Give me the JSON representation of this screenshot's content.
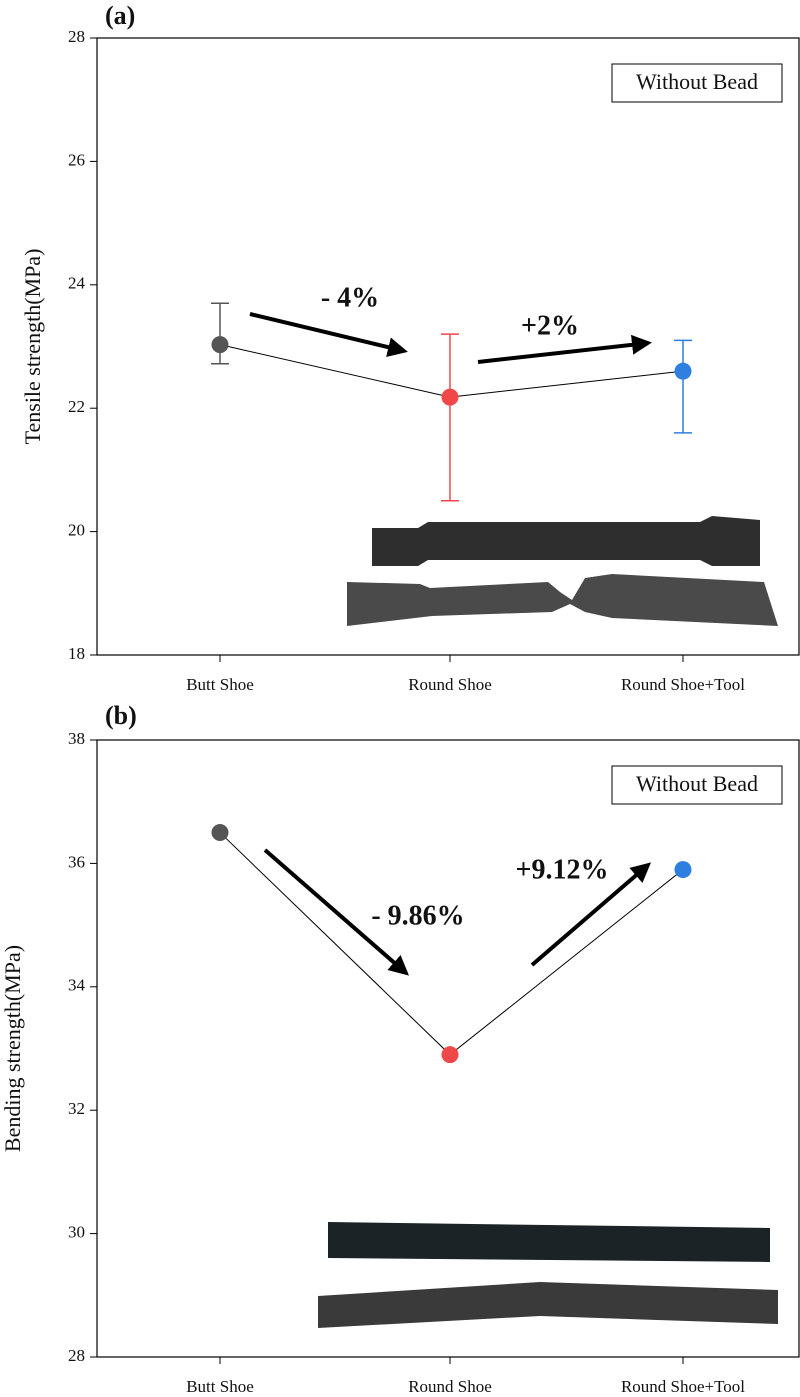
{
  "chart_data": [
    {
      "type": "line",
      "panel_label": "(a)",
      "ylabel": "Tensile strength(MPa)",
      "annotation_box": "Without Bead",
      "categories": [
        "Butt Shoe",
        "Round Shoe",
        "Round Shoe+Tool"
      ],
      "series": [
        {
          "values": [
            23.03,
            22.18,
            22.6
          ],
          "error_lower": [
            22.72,
            20.5,
            21.6
          ],
          "error_upper": [
            23.7,
            23.2,
            23.1
          ],
          "marker_colors": [
            "#555555",
            "#f04848",
            "#2f7fe0"
          ],
          "line_color": "#000000"
        }
      ],
      "annotations": [
        "- 4%",
        "+2%"
      ],
      "ylim": [
        18,
        28
      ],
      "yticks": [
        18,
        20,
        22,
        24,
        26,
        28
      ]
    },
    {
      "type": "line",
      "panel_label": "(b)",
      "ylabel": "Bending strength(MPa)",
      "annotation_box": "Without Bead",
      "categories": [
        "Butt Shoe",
        "Round Shoe",
        "Round Shoe+Tool"
      ],
      "series": [
        {
          "values": [
            36.5,
            32.9,
            35.9
          ],
          "marker_colors": [
            "#555555",
            "#f04848",
            "#2f7fe0"
          ],
          "line_color": "#000000"
        }
      ],
      "annotations": [
        "- 9.86%",
        "+9.12%"
      ],
      "ylim": [
        28,
        38
      ],
      "yticks": [
        28,
        30,
        32,
        34,
        36,
        38
      ]
    }
  ]
}
